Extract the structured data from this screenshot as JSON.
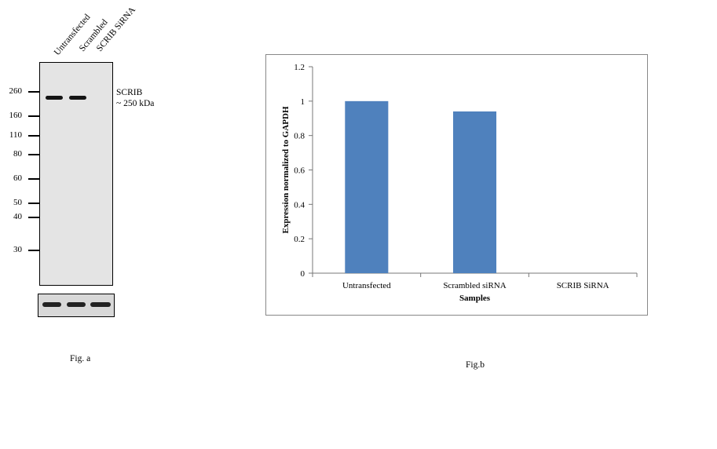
{
  "fig_a": {
    "lanes": [
      "Untransfected",
      "Scrambled",
      "SCRIB SiRNA"
    ],
    "markers": [
      "260",
      "160",
      "110",
      "80",
      "60",
      "50",
      "40",
      "30"
    ],
    "protein_name": "SCRIB",
    "protein_size": "~ 250 kDa",
    "caption": "Fig. a"
  },
  "fig_b": {
    "caption": "Fig.b"
  },
  "chart_data": {
    "type": "bar",
    "categories": [
      "Untransfected",
      "Scrambled siRNA",
      "SCRIB SiRNA"
    ],
    "values": [
      1.0,
      0.94,
      0.0
    ],
    "xlabel": "Samples",
    "ylabel": "Expression normalized to GAPDH",
    "ylim": [
      0,
      1.2
    ],
    "yticks": [
      "0",
      "0.2",
      "0.4",
      "0.6",
      "0.8",
      "1",
      "1.2"
    ],
    "bar_color": "#4f81bd",
    "grid": false,
    "legend": "none"
  }
}
